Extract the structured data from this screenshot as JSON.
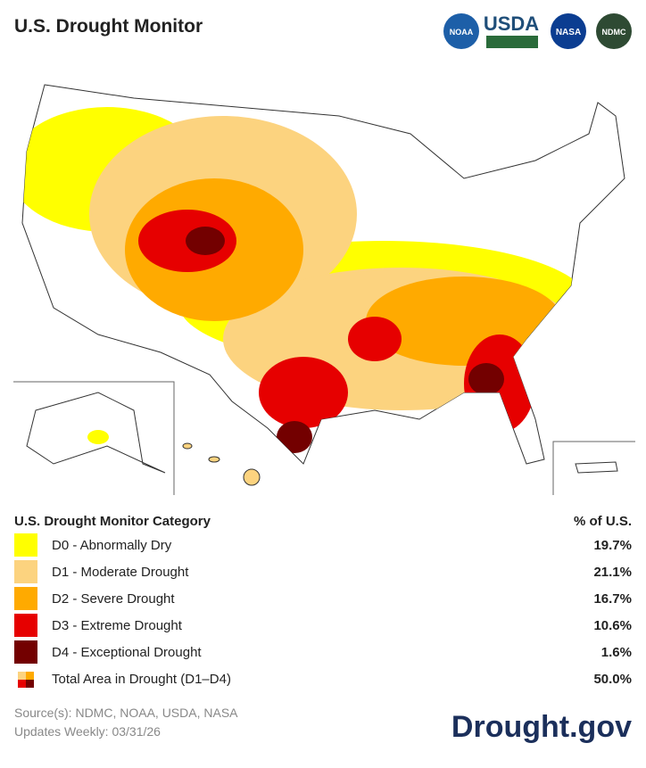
{
  "header": {
    "title": "U.S. Drought Monitor",
    "logos": [
      "NOAA",
      "USDA",
      "NASA",
      "NDMC"
    ]
  },
  "legend": {
    "title": "U.S. Drought Monitor Category",
    "column_header": "% of U.S.",
    "rows": [
      {
        "label": "D0 - Abnormally Dry",
        "percent": "19.7%",
        "color": "#ffff00"
      },
      {
        "label": "D1 - Moderate Drought",
        "percent": "21.1%",
        "color": "#fcd37f"
      },
      {
        "label": "D2 - Severe Drought",
        "percent": "16.7%",
        "color": "#ffaa00"
      },
      {
        "label": "D3 - Extreme Drought",
        "percent": "10.6%",
        "color": "#e60000"
      },
      {
        "label": "D4 - Exceptional Drought",
        "percent": "1.6%",
        "color": "#730000"
      }
    ],
    "total": {
      "label": "Total Area in Drought (D1–D4)",
      "percent": "50.0%",
      "colors": [
        "#fcd37f",
        "#ffaa00",
        "#e60000",
        "#730000"
      ]
    }
  },
  "footer": {
    "sources": "Source(s): NDMC, NOAA, USDA, NASA",
    "updates": "Updates Weekly: 03/31/26",
    "brand": "Drought.gov"
  }
}
